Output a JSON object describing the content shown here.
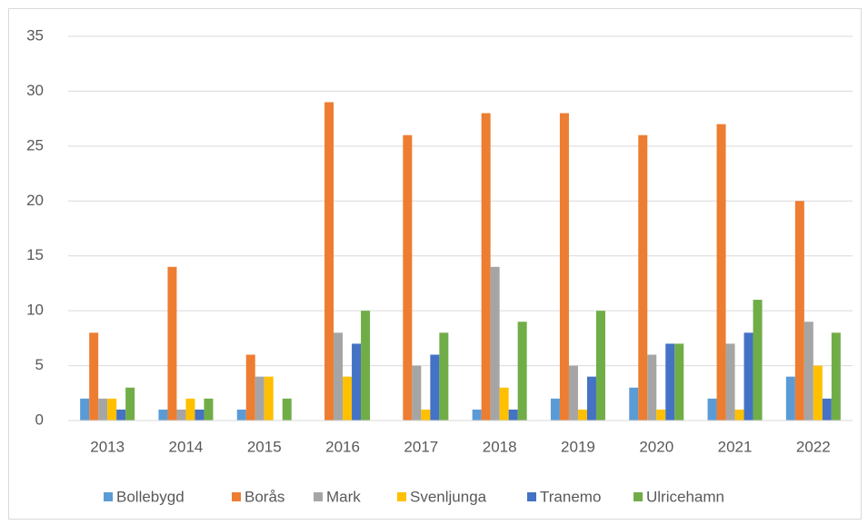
{
  "chart_data": {
    "type": "bar",
    "categories": [
      "2013",
      "2014",
      "2015",
      "2016",
      "2017",
      "2018",
      "2019",
      "2020",
      "2021",
      "2022"
    ],
    "series": [
      {
        "name": "Bollebygd",
        "color": "#5b9bd5",
        "values": [
          2,
          1,
          1,
          0,
          0,
          1,
          2,
          3,
          2,
          4
        ]
      },
      {
        "name": "Borås",
        "color": "#ed7d31",
        "values": [
          8,
          14,
          6,
          29,
          26,
          28,
          28,
          26,
          27,
          20
        ]
      },
      {
        "name": "Mark",
        "color": "#a5a5a5",
        "values": [
          2,
          1,
          4,
          8,
          5,
          14,
          5,
          6,
          7,
          9
        ]
      },
      {
        "name": "Svenljunga",
        "color": "#ffc000",
        "values": [
          2,
          2,
          4,
          4,
          1,
          3,
          1,
          1,
          1,
          5
        ]
      },
      {
        "name": "Tranemo",
        "color": "#4472c4",
        "values": [
          1,
          1,
          0,
          7,
          6,
          1,
          4,
          7,
          8,
          2
        ]
      },
      {
        "name": "Ulricehamn",
        "color": "#70ad47",
        "values": [
          3,
          2,
          2,
          10,
          8,
          9,
          10,
          7,
          11,
          8
        ]
      }
    ],
    "ylim": [
      0,
      35
    ],
    "yticks": [
      0,
      5,
      10,
      15,
      20,
      25,
      30,
      35
    ],
    "grid": true,
    "legend": "bottom"
  }
}
